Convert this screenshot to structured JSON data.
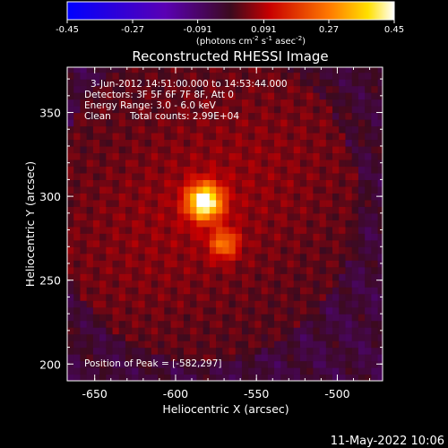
{
  "colorbar": {
    "ticks": [
      "-0.45",
      "-0.27",
      "-0.091",
      "0.091",
      "0.27",
      "0.45"
    ],
    "unit_prefix": "(photons cm",
    "unit_exp1": "-2",
    "unit_mid": " s",
    "unit_exp2": "-1",
    "unit_mid2": " asec",
    "unit_exp3": "-2",
    "unit_suffix": ")",
    "range": [
      -0.45,
      0.45
    ]
  },
  "chart_data": {
    "type": "heatmap",
    "title": "Reconstructed RHESSI Image",
    "xlabel": "Heliocentric X (arcsec)",
    "ylabel": "Heliocentric Y (arcsec)",
    "xlim": [
      -667,
      -472
    ],
    "ylim": [
      190,
      377
    ],
    "x_ticks": [
      "-650",
      "-600",
      "-550",
      "-500"
    ],
    "y_ticks": [
      "200",
      "250",
      "300",
      "350"
    ],
    "annotations": {
      "time": "3-Jun-2012 14:51:00.000 to 14:53:44.000",
      "detectors": "Detectors: 3F 5F 6F 7F 8F, Att 0",
      "energy": "Energy Range: 3.0 - 6.0 keV",
      "method": "Clean",
      "counts": "Total counts: 2.99E+04",
      "peak": "Position of Peak = [-582,297]"
    },
    "sources": [
      {
        "x": -582,
        "y": 297,
        "peak": 0.45
      },
      {
        "x": -570,
        "y": 272,
        "peak": 0.22
      }
    ]
  },
  "footer_timestamp": "11-May-2022 10:06"
}
